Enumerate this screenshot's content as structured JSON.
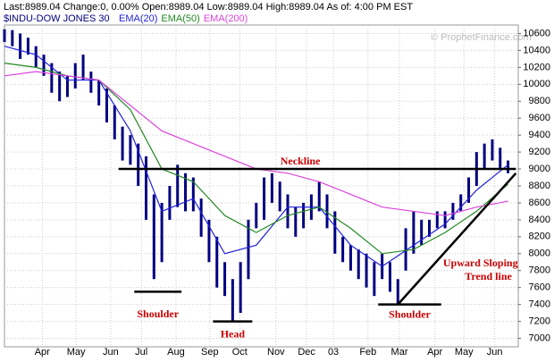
{
  "chart_data": {
    "type": "range-bar",
    "header": "Last:8989.04  Change:0, 0.00%  Open:8989.04  Low:8989.04  High:8989.04  As of: 4:00 PM EST",
    "symbol": "$INDU-DOW JONES 30",
    "watermark": "© ProphetFinance.com",
    "x": [
      0,
      1,
      2,
      3,
      4,
      5,
      6,
      7,
      8,
      9,
      10,
      11,
      12,
      13,
      14,
      15,
      16,
      17,
      18,
      19,
      20,
      21,
      22,
      23,
      24,
      25,
      26,
      27,
      28,
      29,
      30,
      31,
      32,
      33,
      34,
      35,
      36,
      37,
      38,
      39,
      40,
      41,
      42,
      43,
      44,
      45,
      46,
      47,
      48,
      49,
      50,
      51,
      52,
      53,
      54,
      55,
      56,
      57,
      58,
      59,
      60,
      61,
      62,
      63,
      64
    ],
    "high": [
      10650,
      10640,
      10600,
      10550,
      10450,
      10350,
      10250,
      10150,
      10100,
      10250,
      10350,
      10150,
      10050,
      9950,
      9750,
      9500,
      9400,
      9300,
      9150,
      8700,
      8600,
      8800,
      9050,
      8950,
      8900,
      8650,
      8400,
      8200,
      7900,
      7700,
      7900,
      8400,
      8600,
      8900,
      8950,
      8850,
      8700,
      8550,
      8600,
      8700,
      8850,
      8700,
      8500,
      8200,
      8100,
      8050,
      8000,
      7900,
      8000,
      7900,
      7700,
      8300,
      8500,
      8400,
      8400,
      8500,
      8500,
      8600,
      8700,
      8900,
      9200,
      9300,
      9350,
      9250,
      9100
    ],
    "low": [
      10500,
      10450,
      10300,
      10350,
      10200,
      10100,
      9900,
      9800,
      9850,
      9950,
      10050,
      9900,
      9750,
      9550,
      9350,
      9100,
      9050,
      8800,
      8400,
      7700,
      7900,
      8400,
      8550,
      8500,
      8500,
      8200,
      7900,
      7600,
      7500,
      7200,
      7300,
      7700,
      8300,
      8400,
      8600,
      8500,
      8300,
      8200,
      8300,
      8400,
      8500,
      8300,
      8000,
      7900,
      7800,
      7700,
      7600,
      7500,
      7700,
      7550,
      7400,
      7800,
      8000,
      8100,
      8200,
      8300,
      8300,
      8400,
      8500,
      8600,
      8800,
      9000,
      9100,
      9000,
      8950
    ],
    "bar_color": "#000080",
    "series": [
      {
        "name": "EMA(20)",
        "color": "#2222dd",
        "x": [
          0,
          4,
          8,
          12,
          16,
          20,
          24,
          28,
          32,
          36,
          40,
          44,
          48,
          52,
          56,
          60,
          64
        ],
        "values": [
          10450,
          10350,
          10050,
          10050,
          9450,
          8500,
          8650,
          8000,
          8100,
          8550,
          8550,
          8100,
          7850,
          8100,
          8350,
          8750,
          9050
        ]
      },
      {
        "name": "EMA(50)",
        "color": "#228822",
        "x": [
          0,
          4,
          8,
          12,
          16,
          20,
          24,
          28,
          32,
          36,
          40,
          44,
          48,
          52,
          56,
          60,
          64
        ],
        "values": [
          10250,
          10200,
          10100,
          10050,
          9700,
          9000,
          8850,
          8450,
          8250,
          8450,
          8550,
          8300,
          8000,
          8050,
          8250,
          8500,
          8820
        ]
      },
      {
        "name": "EMA(200)",
        "color": "#dd44dd",
        "x": [
          0,
          4,
          8,
          12,
          16,
          20,
          24,
          28,
          32,
          36,
          40,
          44,
          48,
          52,
          56,
          60,
          64
        ],
        "values": [
          10100,
          10150,
          10100,
          10050,
          9750,
          9450,
          9300,
          9150,
          9000,
          8950,
          8850,
          8700,
          8550,
          8500,
          8450,
          8550,
          8620
        ]
      }
    ],
    "lines": [
      {
        "x": [
          14.5,
          65
        ],
        "y": [
          9000,
          9000
        ]
      },
      {
        "x": [
          50,
          65
        ],
        "y": [
          7400,
          8950
        ]
      },
      {
        "x": [
          16.5,
          22.5
        ],
        "y": [
          7550,
          7550
        ]
      },
      {
        "x": [
          26.5,
          31.5
        ],
        "y": [
          7200,
          7200
        ]
      },
      {
        "x": [
          47.5,
          55.5
        ],
        "y": [
          7400,
          7400
        ]
      }
    ],
    "annotations": [
      {
        "text": "Neckline",
        "x": 37.6,
        "y": 9080
      },
      {
        "text": "Shoulder",
        "x": 19.5,
        "y": 7280
      },
      {
        "text": "Head",
        "x": 29,
        "y": 7040
      },
      {
        "text": "Shoulder",
        "x": 51.5,
        "y": 7270
      },
      {
        "text": "Upward Sloping",
        "x": 60.5,
        "y": 7880
      },
      {
        "text": "Trend line",
        "x": 61.5,
        "y": 7720
      }
    ],
    "xlim": [
      0,
      65.3
    ],
    "xticks": [
      {
        "value": 4.8,
        "label": "Apr"
      },
      {
        "value": 9.1,
        "label": "May"
      },
      {
        "value": 13.5,
        "label": "Jun"
      },
      {
        "value": 17.4,
        "label": "Jul"
      },
      {
        "value": 21.8,
        "label": "Aug"
      },
      {
        "value": 26.1,
        "label": "Sep"
      },
      {
        "value": 29.9,
        "label": "Oct"
      },
      {
        "value": 34.5,
        "label": "Nov"
      },
      {
        "value": 38.4,
        "label": "Dec"
      },
      {
        "value": 41.8,
        "label": "03"
      },
      {
        "value": 46.2,
        "label": "Feb"
      },
      {
        "value": 50.2,
        "label": "Mar"
      },
      {
        "value": 54.7,
        "label": "Apr"
      },
      {
        "value": 58.4,
        "label": "May"
      },
      {
        "value": 62.3,
        "label": "Jun"
      }
    ],
    "ylim": [
      6900,
      10700
    ],
    "yticks": [
      7000,
      7200,
      7400,
      7600,
      7800,
      8000,
      8200,
      8400,
      8600,
      8800,
      9000,
      9200,
      9400,
      9600,
      9800,
      10000,
      10200,
      10400,
      10600
    ],
    "grid": true
  }
}
